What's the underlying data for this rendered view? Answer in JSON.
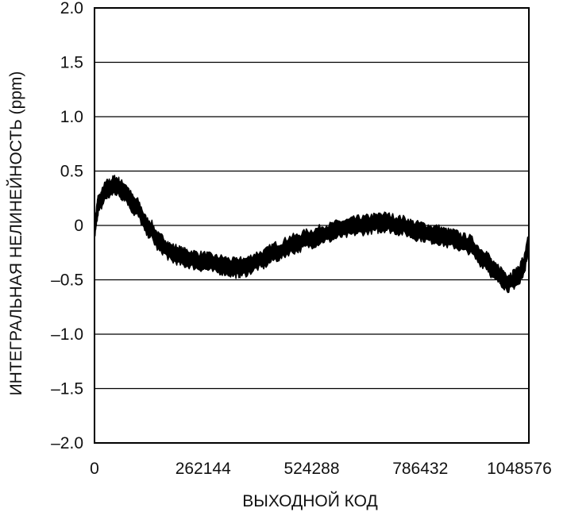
{
  "chart_data": {
    "type": "line",
    "title": "",
    "xlabel": "ВЫХОДНОЙ КОД",
    "ylabel": "ИНТЕГРАЛЬНАЯ НЕЛИНЕЙНОСТЬ (ppm)",
    "xlim": [
      0,
      1048576
    ],
    "ylim": [
      -2.0,
      2.0
    ],
    "x_ticks": [
      0,
      262144,
      524288,
      786432,
      1048576
    ],
    "x_tick_labels": [
      "0",
      "262144",
      "524288",
      "786432",
      "1048576"
    ],
    "y_ticks": [
      2.0,
      1.5,
      1.0,
      0.5,
      0,
      -0.5,
      -1.0,
      -1.5,
      -2.0
    ],
    "y_tick_labels": [
      "2.0",
      "1.5",
      "1.0",
      "0.5",
      "0",
      "–0.5",
      "–1.0",
      "–1.5",
      "–2.0"
    ],
    "grid": "horizontal",
    "series": [
      {
        "color": "#000000",
        "band_halfwidth": 0.07,
        "x": [
          0,
          10000,
          30000,
          50000,
          70000,
          100000,
          130000,
          160000,
          190000,
          220000,
          260000,
          300000,
          340000,
          360000,
          400000,
          440000,
          480000,
          520000,
          560000,
          600000,
          640000,
          680000,
          700000,
          740000,
          780000,
          820000,
          860000,
          900000,
          940000,
          970000,
          1000000,
          1020000,
          1035000,
          1048576
        ],
        "y": [
          -0.02,
          0.2,
          0.33,
          0.37,
          0.32,
          0.17,
          -0.02,
          -0.17,
          -0.26,
          -0.3,
          -0.33,
          -0.36,
          -0.39,
          -0.38,
          -0.32,
          -0.24,
          -0.17,
          -0.12,
          -0.07,
          -0.03,
          0.0,
          0.02,
          0.03,
          0.0,
          -0.05,
          -0.08,
          -0.12,
          -0.17,
          -0.3,
          -0.44,
          -0.52,
          -0.48,
          -0.38,
          -0.18
        ]
      }
    ]
  }
}
